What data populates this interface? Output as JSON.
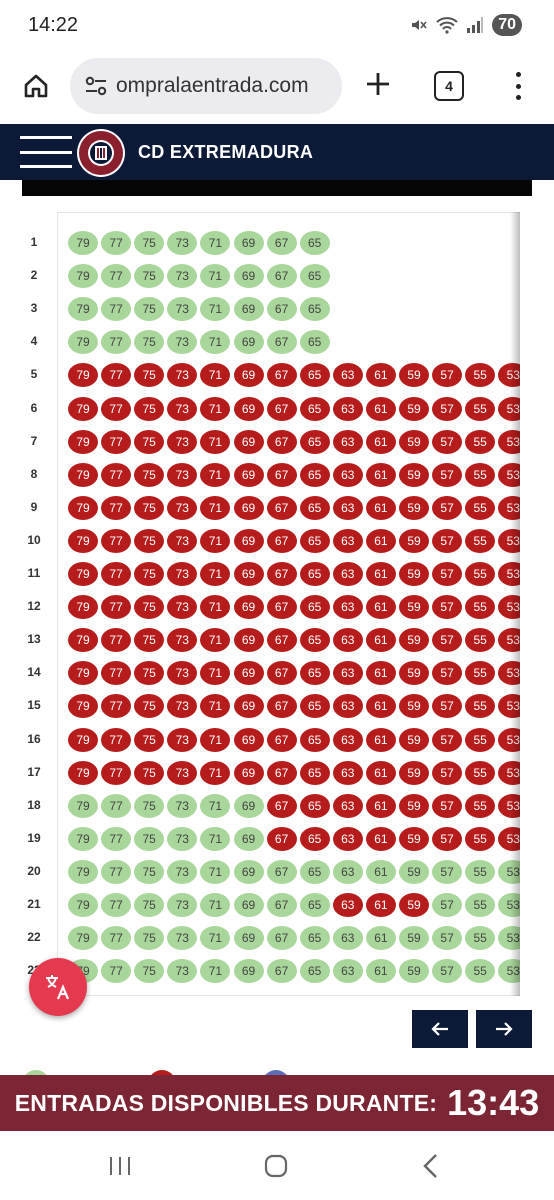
{
  "status_bar": {
    "time": "14:22",
    "battery": "70"
  },
  "browser": {
    "url": "ompralaentrada.com",
    "tab_count": "4"
  },
  "header": {
    "club_name": "CD EXTREMADURA"
  },
  "seating": {
    "seat_numbers": [
      "79",
      "77",
      "75",
      "73",
      "71",
      "69",
      "67",
      "65",
      "63",
      "61",
      "59",
      "57",
      "55",
      "53"
    ],
    "rows": [
      {
        "label": "1",
        "seats": "FFFFFFFF"
      },
      {
        "label": "2",
        "seats": "FFFFFFFF"
      },
      {
        "label": "3",
        "seats": "FFFFFFFF"
      },
      {
        "label": "4",
        "seats": "FFFFFFFF"
      },
      {
        "label": "5",
        "seats": "TTTTTTTTTTTTTT"
      },
      {
        "label": "6",
        "seats": "TTTTTTTTTTTTTT"
      },
      {
        "label": "7",
        "seats": "TTTTTTTTTTTTTT"
      },
      {
        "label": "8",
        "seats": "TTTTTTTTTTTTTT"
      },
      {
        "label": "9",
        "seats": "TTTTTTTTTTTTTT"
      },
      {
        "label": "10",
        "seats": "TTTTTTTTTTTTTT"
      },
      {
        "label": "11",
        "seats": "TTTTTTTTTTTTTT"
      },
      {
        "label": "12",
        "seats": "TTTTTTTTTTTTTT"
      },
      {
        "label": "13",
        "seats": "TTTTTTTTTTTTTT"
      },
      {
        "label": "14",
        "seats": "TTTTTTTTTTTTTT"
      },
      {
        "label": "15",
        "seats": "TTTTTTTTTTTTTT"
      },
      {
        "label": "16",
        "seats": "TTTTTTTTTTTTTT"
      },
      {
        "label": "17",
        "seats": "TTTTTTTTTTTTTT"
      },
      {
        "label": "18",
        "seats": "FFFFFFTTTTTTTT"
      },
      {
        "label": "19",
        "seats": "FFFFFFTTTTTTTT"
      },
      {
        "label": "20",
        "seats": "FFFFFFFFFFFFFF"
      },
      {
        "label": "21",
        "seats": "FFFFFFFFTTTFFF"
      },
      {
        "label": "22",
        "seats": "FFFFFFFFFFFFFF"
      },
      {
        "label": "23",
        "seats": "FFFFFFFFFFFFFF"
      }
    ],
    "legend": {
      "free": "F",
      "taken": "T"
    },
    "colors": {
      "free": "#a9d69a",
      "taken": "#b71c1c"
    }
  },
  "timer": {
    "label": "ENTRADAS DISPONIBLES DURANTE:",
    "value": "13:43"
  },
  "colors": {
    "header": "#0c1a38",
    "timer_bar": "#7b2535",
    "fab": "#e53950"
  }
}
